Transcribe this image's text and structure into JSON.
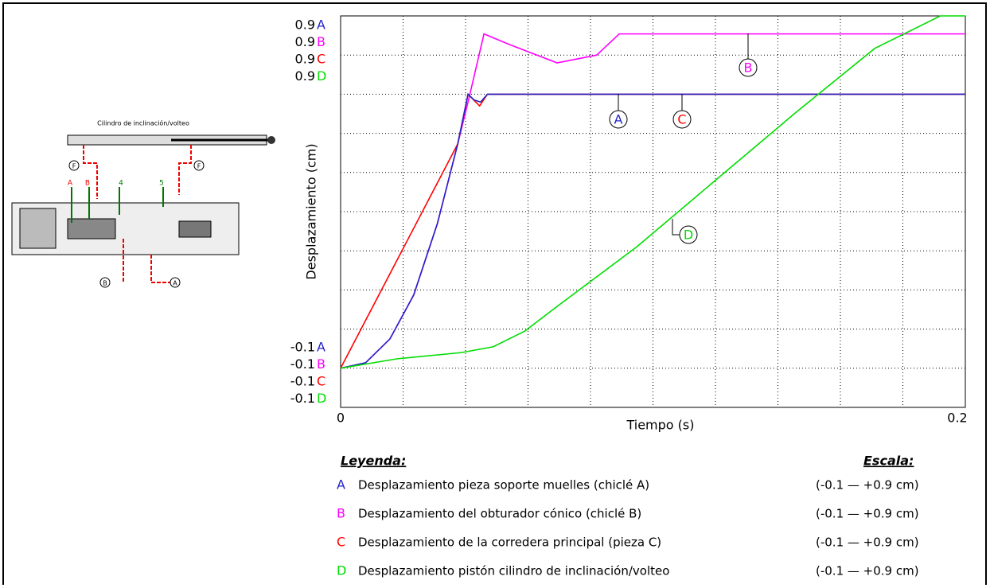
{
  "chart_data": {
    "type": "line",
    "x_label": "Tiempo (s)",
    "y_label": "Desplazamiento (cm)",
    "xlim": [
      0,
      0.2
    ],
    "xticks": [
      0,
      0.02,
      0.04,
      0.06,
      0.08,
      0.1,
      0.12,
      0.14,
      0.16,
      0.18,
      0.2
    ],
    "ylim": [
      -0.1,
      0.9
    ],
    "yticks": [
      -0.1,
      0,
      0.1,
      0.2,
      0.3,
      0.4,
      0.5,
      0.6,
      0.7,
      0.8,
      0.9
    ],
    "grid": true,
    "legend_title": "Leyenda:",
    "scale_title": "Escala:",
    "series": [
      {
        "name": "A",
        "color": "#2323c8",
        "description": "Desplazamiento pieza soporte muelles (chiclé A)",
        "scale": "(-0.1 — +0.9 cm)",
        "x": [
          0,
          0.008,
          0.0158,
          0.0234,
          0.031,
          0.0375,
          0.0408,
          0.0428,
          0.0448,
          0.047,
          0.2
        ],
        "values": [
          0,
          0.014,
          0.075,
          0.187,
          0.37,
          0.573,
          0.7,
          0.685,
          0.68,
          0.7,
          0.7
        ]
      },
      {
        "name": "B",
        "color": "#ff00ff",
        "description": "Desplazamiento del obturador cónico (chiclé B)",
        "scale": "(-0.1 — +0.9 cm)",
        "x": [
          0,
          0.008,
          0.0158,
          0.0234,
          0.031,
          0.0375,
          0.0408,
          0.0459,
          0.054,
          0.0693,
          0.082,
          0.0892,
          0.0999,
          0.2
        ],
        "values": [
          0,
          0.014,
          0.075,
          0.187,
          0.37,
          0.573,
          0.68,
          0.854,
          0.827,
          0.78,
          0.8,
          0.854,
          0.854,
          0.854
        ]
      },
      {
        "name": "C",
        "color": "#ff0000",
        "description": "Desplazamiento de la corredera principal (pieza C)",
        "scale": "(-0.1 — +0.9 cm)",
        "x": [
          0,
          0.0375,
          0.0408,
          0.0445,
          0.047,
          0.2
        ],
        "values": [
          0,
          0.573,
          0.7,
          0.67,
          0.7,
          0.7
        ]
      },
      {
        "name": "D",
        "color": "#00dd00",
        "description": "Desplazamiento pistón cilindro de inclinación/volteo",
        "scale": "(-0.1 — +0.9 cm)",
        "x": [
          0,
          0.018,
          0.0387,
          0.0489,
          0.059,
          0.069,
          0.0948,
          0.12,
          0.146,
          0.171,
          0.192,
          0.2
        ],
        "values": [
          0,
          0.024,
          0.04,
          0.055,
          0.095,
          0.156,
          0.31,
          0.48,
          0.655,
          0.817,
          0.9,
          0.9
        ]
      }
    ]
  },
  "schematic": {
    "title": "Cilindro de inclinación/volteo",
    "ports": [
      "A",
      "B",
      "4",
      "5"
    ],
    "connectors": [
      "F",
      "F",
      "B",
      "A"
    ]
  }
}
